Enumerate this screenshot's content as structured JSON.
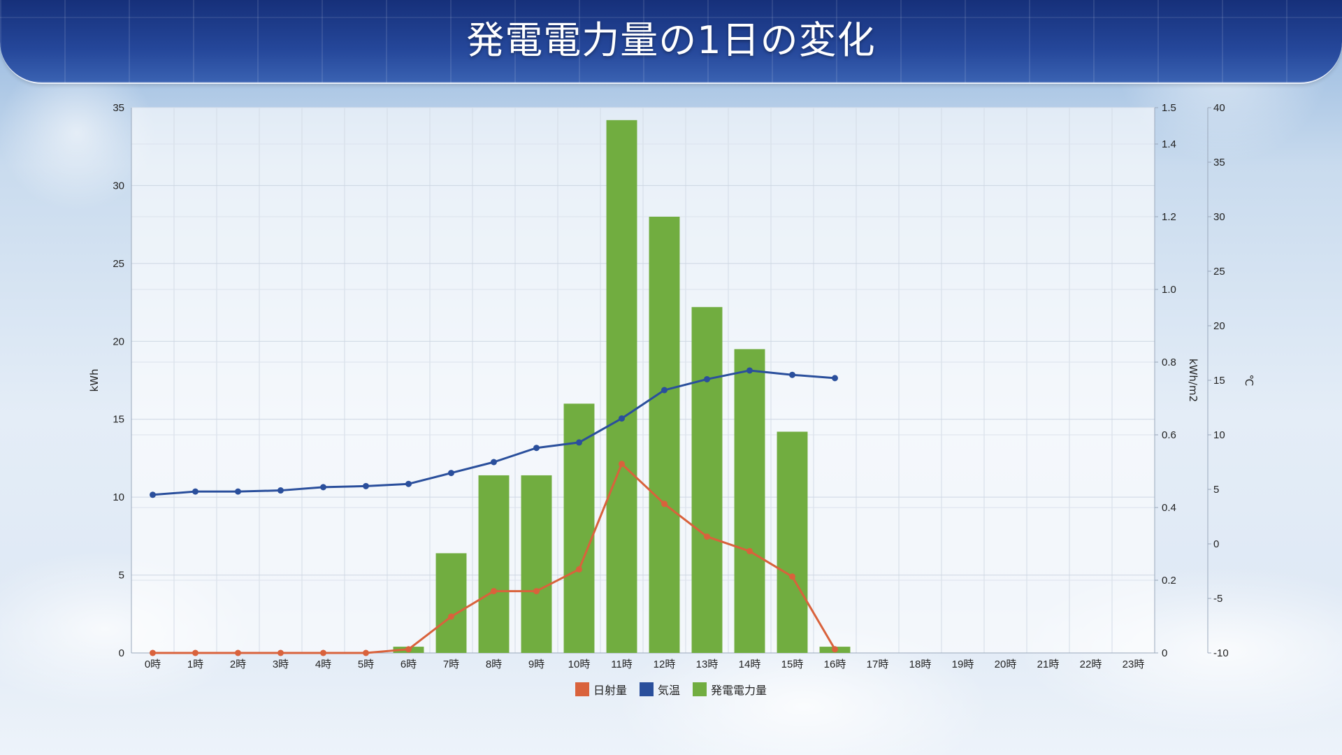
{
  "title": "発電電力量の1日の変化",
  "colors": {
    "irradiance": "#d9623c",
    "temperature": "#2a4f9c",
    "power": "#71ad40"
  },
  "chart_data": {
    "type": "bar",
    "categories": [
      "0時",
      "1時",
      "2時",
      "3時",
      "4時",
      "5時",
      "6時",
      "7時",
      "8時",
      "9時",
      "10時",
      "11時",
      "12時",
      "13時",
      "14時",
      "15時",
      "16時",
      "17時",
      "18時",
      "19時",
      "20時",
      "21時",
      "22時",
      "23時"
    ],
    "series": [
      {
        "name": "日射量",
        "type": "line",
        "axis": "kWh/m2",
        "color": "#d9623c",
        "values": [
          0,
          0,
          0,
          0,
          0,
          0,
          0.01,
          0.1,
          0.17,
          0.17,
          0.23,
          0.52,
          0.41,
          0.32,
          0.28,
          0.21,
          0.01,
          null,
          null,
          null,
          null,
          null,
          null,
          null
        ]
      },
      {
        "name": "気温",
        "type": "line",
        "axis": "℃",
        "color": "#2a4f9c",
        "values": [
          4.5,
          4.8,
          4.8,
          4.9,
          5.2,
          5.3,
          5.5,
          6.5,
          7.5,
          8.8,
          9.3,
          11.5,
          14.1,
          15.1,
          15.9,
          15.5,
          15.2,
          null,
          null,
          null,
          null,
          null,
          null,
          null
        ]
      },
      {
        "name": "発電電力量",
        "type": "bar",
        "axis": "kWh",
        "color": "#71ad40",
        "values": [
          0,
          0,
          0,
          0,
          0,
          0,
          0.4,
          6.4,
          11.4,
          11.4,
          16,
          34.2,
          28,
          22.2,
          19.5,
          14.2,
          0.4,
          0,
          0,
          0,
          0,
          0,
          0,
          0
        ]
      }
    ],
    "axes": {
      "left": {
        "label": "kWh",
        "min": 0,
        "max": 35,
        "ticks": [
          "0",
          "5",
          "10",
          "15",
          "20",
          "25",
          "30",
          "35"
        ]
      },
      "right1": {
        "label": "kWh/m2",
        "min": 0,
        "max": 1.5,
        "ticks": [
          "0",
          "0.2",
          "0.4",
          "0.6",
          "0.8",
          "1.0",
          "1.2",
          "1.4",
          "1.5"
        ]
      },
      "right2": {
        "label": "℃",
        "min": -10,
        "max": 40,
        "ticks": [
          "-10",
          "-5",
          "0",
          "5",
          "10",
          "15",
          "20",
          "25",
          "30",
          "35",
          "40"
        ]
      }
    },
    "legend": [
      "日射量",
      "気温",
      "発電電力量"
    ],
    "legend_position": "bottom",
    "grid": true
  }
}
